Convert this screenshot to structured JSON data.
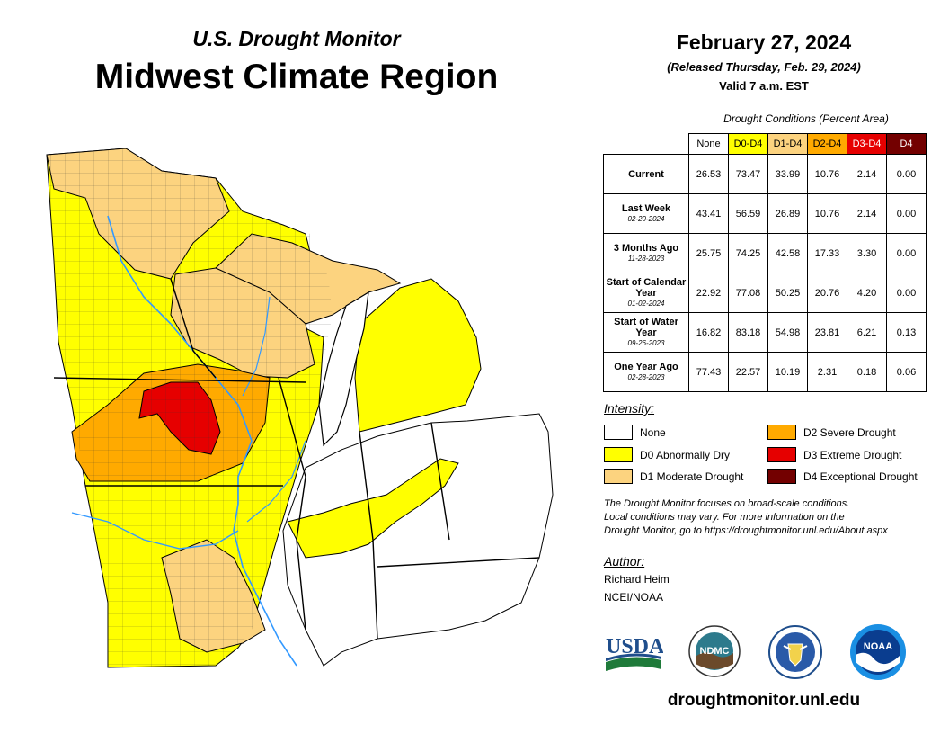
{
  "header": {
    "subtitle": "U.S. Drought Monitor",
    "title": "Midwest Climate Region",
    "date": "February 27, 2024",
    "released": "(Released Thursday, Feb. 29, 2024)",
    "valid": "Valid 7 a.m. EST"
  },
  "table": {
    "caption": "Drought Conditions (Percent Area)",
    "columns": [
      {
        "label": "None",
        "color": "#ffffff",
        "text_color": "#000000"
      },
      {
        "label": "D0-D4",
        "color": "#ffff00",
        "text_color": "#000000"
      },
      {
        "label": "D1-D4",
        "color": "#fcd37f",
        "text_color": "#000000"
      },
      {
        "label": "D2-D4",
        "color": "#ffaa00",
        "text_color": "#000000"
      },
      {
        "label": "D3-D4",
        "color": "#e60000",
        "text_color": "#ffffff"
      },
      {
        "label": "D4",
        "color": "#730000",
        "text_color": "#ffffff"
      }
    ],
    "rows": [
      {
        "label": "Current",
        "date": "",
        "values": [
          "26.53",
          "73.47",
          "33.99",
          "10.76",
          "2.14",
          "0.00"
        ]
      },
      {
        "label": "Last Week",
        "date": "02-20-2024",
        "values": [
          "43.41",
          "56.59",
          "26.89",
          "10.76",
          "2.14",
          "0.00"
        ]
      },
      {
        "label": "3 Months Ago",
        "date": "11-28-2023",
        "values": [
          "25.75",
          "74.25",
          "42.58",
          "17.33",
          "3.30",
          "0.00"
        ]
      },
      {
        "label": "Start of Calendar Year",
        "date": "01-02-2024",
        "values": [
          "22.92",
          "77.08",
          "50.25",
          "20.76",
          "4.20",
          "0.00"
        ]
      },
      {
        "label": "Start of Water Year",
        "date": "09-26-2023",
        "values": [
          "16.82",
          "83.18",
          "54.98",
          "23.81",
          "6.21",
          "0.13"
        ]
      },
      {
        "label": "One Year Ago",
        "date": "02-28-2023",
        "values": [
          "77.43",
          "22.57",
          "10.19",
          "2.31",
          "0.18",
          "0.06"
        ]
      }
    ]
  },
  "legend": {
    "label": "Intensity:",
    "items": [
      {
        "label": "None",
        "color": "#ffffff"
      },
      {
        "label": "D0 Abnormally Dry",
        "color": "#ffff00"
      },
      {
        "label": "D1 Moderate Drought",
        "color": "#fcd37f"
      },
      {
        "label": "D2 Severe Drought",
        "color": "#ffaa00"
      },
      {
        "label": "D3 Extreme Drought",
        "color": "#e60000"
      },
      {
        "label": "D4 Exceptional Drought",
        "color": "#730000"
      }
    ]
  },
  "note": {
    "line1": "The Drought Monitor focuses on broad-scale conditions.",
    "line2": "Local conditions may vary. For more information on the",
    "line3": "Drought Monitor, go to https://droughtmonitor.unl.edu/About.aspx"
  },
  "author": {
    "label": "Author:",
    "name": "Richard Heim",
    "org": "NCEI/NOAA"
  },
  "logos": {
    "usda": "USDA",
    "ndmc": "NDMC",
    "noaa": "NOAA"
  },
  "footer": {
    "url": "droughtmonitor.unl.edu"
  }
}
